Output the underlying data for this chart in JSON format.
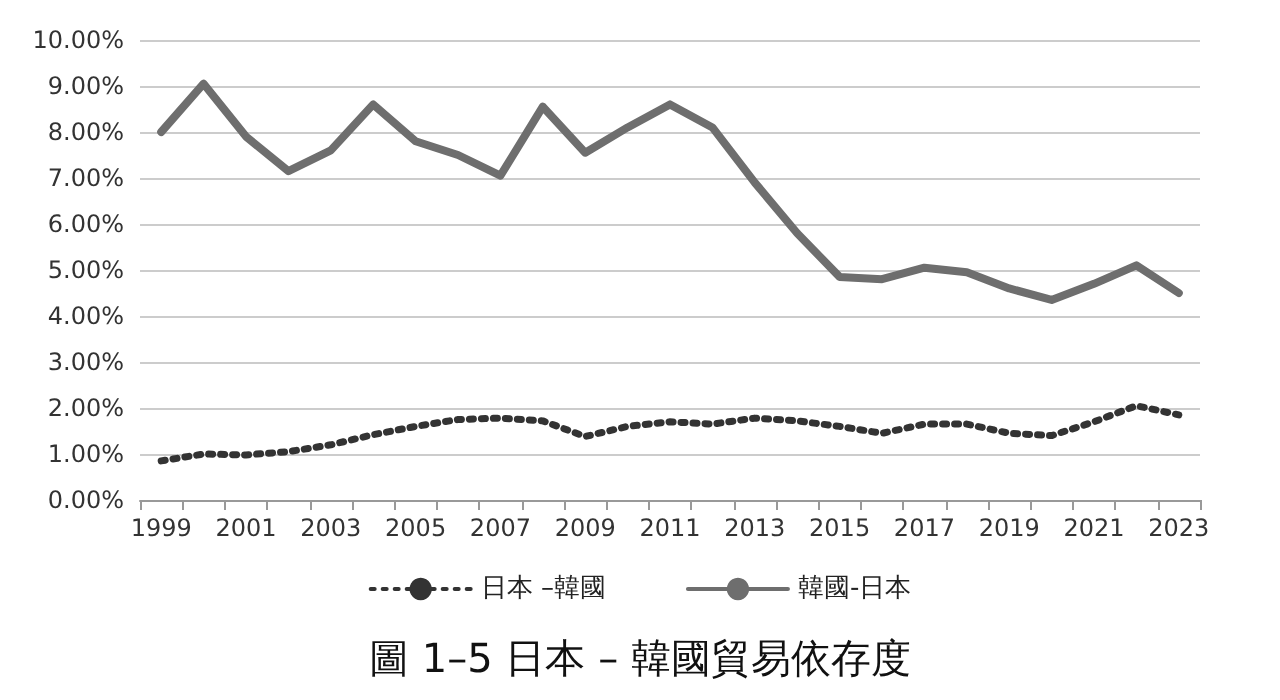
{
  "chart_data": {
    "type": "line",
    "title": "圖 1–5 日本 – 韓國貿易依存度",
    "categories": [
      "1999",
      null,
      "2001",
      null,
      "2003",
      null,
      "2005",
      null,
      "2007",
      null,
      "2009",
      null,
      "2011",
      null,
      "2013",
      null,
      "2015",
      null,
      "2017",
      null,
      "2019",
      null,
      "2021",
      null,
      "2023"
    ],
    "series": [
      {
        "name": "日本 –韓國",
        "color": "#333333",
        "line_style": "dotted",
        "values": [
          0.85,
          1.0,
          0.98,
          1.05,
          1.2,
          1.42,
          1.6,
          1.75,
          1.78,
          1.72,
          1.38,
          1.6,
          1.7,
          1.65,
          1.78,
          1.72,
          1.6,
          1.45,
          1.65,
          1.65,
          1.45,
          1.4,
          1.7,
          2.05,
          1.85
        ]
      },
      {
        "name": "韓國-日本",
        "color": "#6e6e6e",
        "line_style": "solid",
        "values": [
          8.0,
          9.05,
          7.9,
          7.15,
          7.6,
          8.6,
          7.8,
          7.5,
          7.05,
          8.55,
          7.55,
          8.1,
          8.6,
          8.1,
          6.9,
          5.8,
          4.85,
          4.8,
          5.05,
          4.95,
          4.6,
          4.35,
          4.7,
          5.1,
          4.5
        ]
      }
    ],
    "ylim": [
      0,
      10
    ],
    "yticks": [
      {
        "value": 0,
        "label": "0.00%"
      },
      {
        "value": 1,
        "label": "1.00%"
      },
      {
        "value": 2,
        "label": "2.00%"
      },
      {
        "value": 3,
        "label": "3.00%"
      },
      {
        "value": 4,
        "label": "4.00%"
      },
      {
        "value": 5,
        "label": "5.00%"
      },
      {
        "value": 6,
        "label": "6.00%"
      },
      {
        "value": 7,
        "label": "7.00%"
      },
      {
        "value": 8,
        "label": "8.00%"
      },
      {
        "value": 9,
        "label": "9.00%"
      },
      {
        "value": 10,
        "label": "10.00%"
      }
    ],
    "grid": "y",
    "legend": "bottom",
    "marker": "none"
  }
}
